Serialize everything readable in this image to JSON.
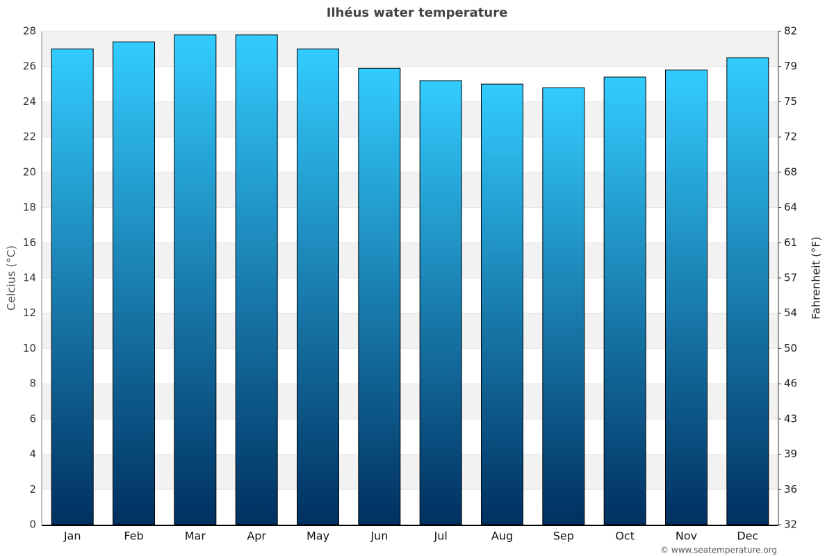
{
  "chart_data": {
    "type": "bar",
    "title": "Ilhéus water temperature",
    "y_label": "Celcius (°C)",
    "y2_label": "Fahrenheit (°F)",
    "source": "© www.seatemperature.org",
    "categories": [
      "Jan",
      "Feb",
      "Mar",
      "Apr",
      "May",
      "Jun",
      "Jul",
      "Aug",
      "Sep",
      "Oct",
      "Nov",
      "Dec"
    ],
    "values": [
      27,
      27.4,
      27.8,
      27.8,
      27,
      25.9,
      25.2,
      25,
      24.8,
      25.4,
      25.8,
      26.5
    ],
    "color": [
      "#33ccff",
      "#003060"
    ],
    "ylim": [
      0,
      28
    ],
    "yticks": [
      0,
      2,
      4,
      6,
      8,
      10,
      12,
      14,
      16,
      18,
      20,
      22,
      24,
      26,
      28
    ],
    "y2lim": [
      32,
      82.4
    ],
    "y2ticks": [
      32,
      {
        "value": 35.6,
        "label": "36"
      },
      {
        "value": 39.2,
        "label": "39"
      },
      {
        "value": 42.8,
        "label": "43"
      },
      {
        "value": 46.4,
        "label": "46"
      },
      50,
      {
        "value": 53.6,
        "label": "54"
      },
      {
        "value": 57.2,
        "label": "57"
      },
      {
        "value": 60.8,
        "label": "61"
      },
      {
        "value": 64.4,
        "label": "64"
      },
      68,
      {
        "value": 71.6,
        "label": "72"
      },
      {
        "value": 75.2,
        "label": "75"
      },
      {
        "value": 78.8,
        "label": "79"
      },
      {
        "value": 82.4,
        "label": "82"
      }
    ],
    "grid": true
  }
}
